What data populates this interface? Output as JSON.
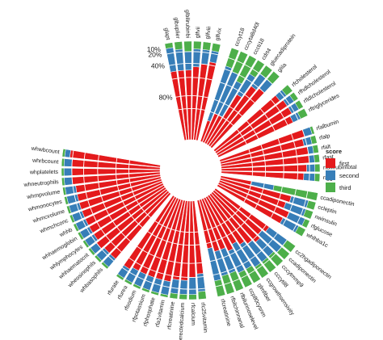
{
  "chart_data": {
    "type": "bar",
    "coord": "polar-stacked-bar",
    "percent_tick_labels": [
      "10%",
      "20%",
      "40%",
      "80%"
    ],
    "legend": {
      "title": "score",
      "placement": "right",
      "entries": [
        {
          "label": "first",
          "color": "#E41A1C"
        },
        {
          "label": "second",
          "color": "#377EB8"
        },
        {
          "label": "third",
          "color": "#4DAF4A"
        }
      ]
    },
    "groups": [
      {
        "categories": [
          "glapt",
          "glbuplier",
          "glbilirubinbi",
          "glfvii",
          "glfviii",
          "glfvix"
        ],
        "series": [
          {
            "name": "first",
            "values": [
              0.5,
              0.5,
              0.5,
              0.55,
              0.6,
              0.65
            ]
          },
          {
            "name": "second",
            "values": [
              0.4,
              0.35,
              0.3,
              0.3,
              0.25,
              0.2
            ]
          },
          {
            "name": "third",
            "values": [
              0.1,
              0.15,
              0.2,
              0.15,
              0.15,
              0.15
            ]
          }
        ]
      },
      {
        "categories": [
          "cccyt18",
          "cccyta8d40l",
          "cccti18",
          "cdrt4",
          "gluecadiprotein",
          "glila"
        ],
        "series": [
          {
            "name": "first",
            "values": [
              0.05,
              0.1,
              0.1,
              0.35,
              0.55,
              0.6
            ]
          },
          {
            "name": "second",
            "values": [
              0.6,
              0.5,
              0.4,
              0.35,
              0.25,
              0.2
            ]
          },
          {
            "name": "third",
            "values": [
              0.35,
              0.4,
              0.5,
              0.3,
              0.2,
              0.2
            ]
          }
        ]
      },
      {
        "categories": [
          "rfcholesterol",
          "rfhdlcholesterol",
          "rfldlcholesterol",
          "rftriglycerides"
        ],
        "series": [
          {
            "name": "first",
            "values": [
              0.7,
              0.75,
              0.75,
              0.7
            ]
          },
          {
            "name": "second",
            "values": [
              0.15,
              0.15,
              0.15,
              0.15
            ]
          },
          {
            "name": "third",
            "values": [
              0.15,
              0.1,
              0.1,
              0.15
            ]
          }
        ]
      },
      {
        "categories": [
          "rfalbumin",
          "rfalp",
          "rfalt",
          "rfast",
          "rfbilirubintotal",
          "rfggt"
        ],
        "series": [
          {
            "name": "first",
            "values": [
              0.8,
              0.75,
              0.8,
              0.8,
              0.75,
              0.7
            ]
          },
          {
            "name": "second",
            "values": [
              0.15,
              0.15,
              0.1,
              0.1,
              0.15,
              0.2
            ]
          },
          {
            "name": "third",
            "values": [
              0.05,
              0.1,
              0.1,
              0.1,
              0.1,
              0.1
            ]
          }
        ]
      },
      {
        "categories": [
          "ccadiponectin",
          "ccleptin",
          "nwinsulin",
          "rfglucose",
          "whlhba1c"
        ],
        "series": [
          {
            "name": "first",
            "values": [
              0.1,
              0.55,
              0.5,
              0.6,
              0.55
            ]
          },
          {
            "name": "second",
            "values": [
              0.2,
              0.3,
              0.35,
              0.3,
              0.3
            ]
          },
          {
            "name": "third",
            "values": [
              0.7,
              0.15,
              0.15,
              0.1,
              0.15
            ]
          }
        ]
      },
      {
        "categories": [
          "cc2hgadiponectin",
          "ccadiponectin",
          "cccytmmp9",
          "cccytil8",
          "ccgrowthsensivity",
          "glmfiber",
          "ccp80cysnm",
          "rfbilurinoselevel",
          "rfbilchinnanal",
          "rfcreatinine"
        ],
        "series": [
          {
            "name": "first",
            "values": [
              0.45,
              0.4,
              0.45,
              0.4,
              0.35,
              0.3,
              0.35,
              0.3,
              0.3,
              0.25
            ]
          },
          {
            "name": "second",
            "values": [
              0.35,
              0.4,
              0.3,
              0.35,
              0.4,
              0.4,
              0.35,
              0.35,
              0.35,
              0.45
            ]
          },
          {
            "name": "third",
            "values": [
              0.2,
              0.2,
              0.25,
              0.25,
              0.25,
              0.3,
              0.3,
              0.35,
              0.35,
              0.3
            ]
          }
        ]
      },
      {
        "categories": [
          "rfc25vitamin",
          "rfcalcium",
          "rfcorrectedcalcium",
          "rfcreatinine",
          "rfa1vitamin",
          "rfphosphate",
          "rfpotassium",
          "rfsodium",
          "rfurea",
          "rfurate"
        ],
        "series": [
          {
            "name": "first",
            "values": [
              0.55,
              0.6,
              0.65,
              0.65,
              0.7,
              0.7,
              0.7,
              0.7,
              0.7,
              0.75
            ]
          },
          {
            "name": "second",
            "values": [
              0.3,
              0.3,
              0.25,
              0.25,
              0.25,
              0.25,
              0.25,
              0.25,
              0.25,
              0.2
            ]
          },
          {
            "name": "third",
            "values": [
              0.15,
              0.1,
              0.1,
              0.1,
              0.05,
              0.05,
              0.05,
              0.05,
              0.05,
              0.05
            ]
          }
        ]
      },
      {
        "categories": [
          "whbasophils",
          "wheosinophils",
          "whhaematocrit",
          "whlymphocytes",
          "whhaemoglobin",
          "whhb",
          "whmchconc",
          "whmcvolume",
          "whmonocytes",
          "whmpvolume",
          "whneutrophils",
          "whplatelets",
          "whrbcount",
          "whwbcount"
        ],
        "series": [
          {
            "name": "first",
            "values": [
              0.75,
              0.75,
              0.8,
              0.75,
              0.75,
              0.75,
              0.75,
              0.75,
              0.75,
              0.75,
              0.8,
              0.8,
              0.8,
              0.85
            ]
          },
          {
            "name": "second",
            "values": [
              0.2,
              0.2,
              0.15,
              0.2,
              0.2,
              0.2,
              0.2,
              0.2,
              0.2,
              0.2,
              0.15,
              0.15,
              0.15,
              0.1
            ]
          },
          {
            "name": "third",
            "values": [
              0.05,
              0.05,
              0.05,
              0.05,
              0.05,
              0.05,
              0.05,
              0.05,
              0.05,
              0.05,
              0.05,
              0.05,
              0.05,
              0.05
            ]
          }
        ]
      }
    ]
  }
}
